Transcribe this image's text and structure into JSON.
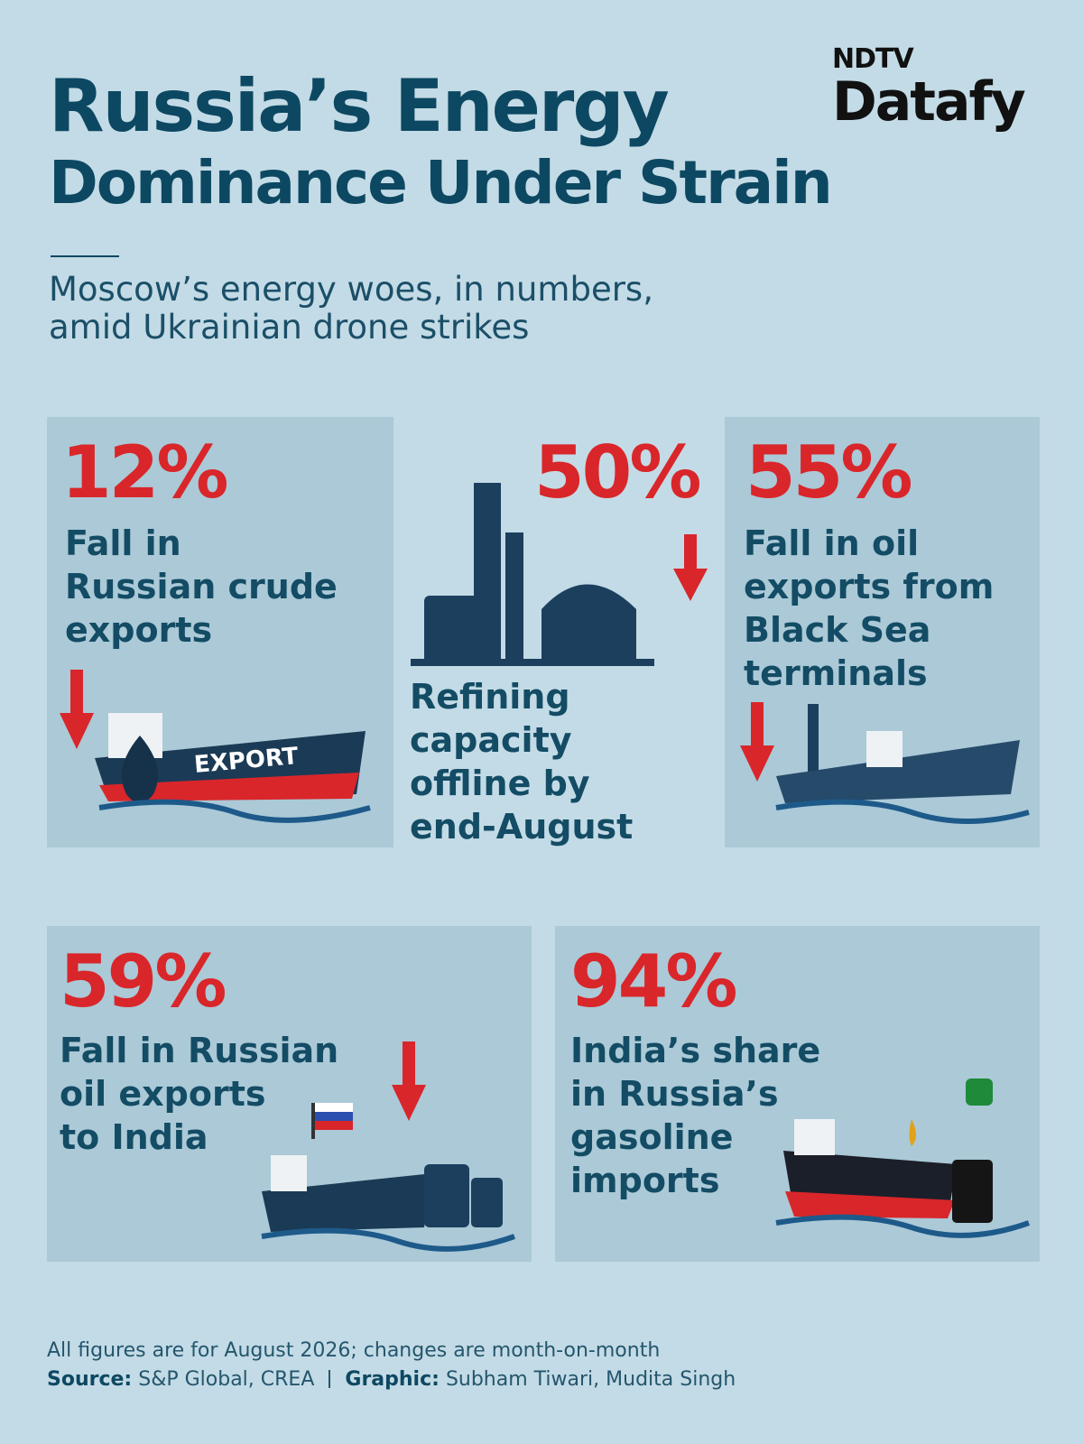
{
  "brand": {
    "top": "NDTV",
    "bottom": "Datafy"
  },
  "header": {
    "title_lines": [
      "Russia’s Energy",
      "Dominance Under Strain"
    ],
    "subtitle_lines": [
      "Moscow’s energy woes, in numbers,",
      "amid Ukrainian drone strikes"
    ]
  },
  "stats": [
    {
      "value": "12%",
      "label_lines": [
        "Fall in",
        "Russian crude",
        "exports"
      ],
      "ship_text": "EXPORT"
    },
    {
      "value": "50%",
      "label_lines": [
        "Refining",
        "capacity",
        "offline by",
        "end-August"
      ]
    },
    {
      "value": "55%",
      "label_lines": [
        "Fall in oil",
        "exports from",
        "Black Sea",
        "terminals"
      ]
    },
    {
      "value": "59%",
      "label_lines": [
        "Fall in Russian",
        "oil exports",
        "to India"
      ]
    },
    {
      "value": "94%",
      "label_lines": [
        "India’s share",
        "in Russia’s",
        "gasoline",
        "imports"
      ]
    }
  ],
  "footer": {
    "note": "All figures are for August 2026; changes are month-on-month",
    "source_label": "Source:",
    "source": "S&P Global, CREA",
    "graphic_label": "Graphic:",
    "graphic": "Subham Tiwari, Mudita Singh"
  }
}
